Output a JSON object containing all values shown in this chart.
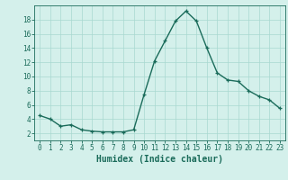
{
  "x": [
    0,
    1,
    2,
    3,
    4,
    5,
    6,
    7,
    8,
    9,
    10,
    11,
    12,
    13,
    14,
    15,
    16,
    17,
    18,
    19,
    20,
    21,
    22,
    23
  ],
  "y": [
    4.5,
    4.0,
    3.0,
    3.2,
    2.5,
    2.3,
    2.2,
    2.2,
    2.2,
    2.5,
    7.5,
    12.2,
    15.0,
    17.8,
    19.2,
    17.8,
    14.0,
    10.5,
    9.5,
    9.3,
    8.0,
    7.2,
    6.7,
    5.5
  ],
  "line_color": "#1a6b5a",
  "marker": "+",
  "markersize": 3,
  "linewidth": 1.0,
  "bg_color": "#d4f0eb",
  "grid_color": "#a8d8d0",
  "xlabel": "Humidex (Indice chaleur)",
  "xlim": [
    -0.5,
    23.5
  ],
  "ylim": [
    1.0,
    20.0
  ],
  "yticks": [
    2,
    4,
    6,
    8,
    10,
    12,
    14,
    16,
    18
  ],
  "xticks": [
    0,
    1,
    2,
    3,
    4,
    5,
    6,
    7,
    8,
    9,
    10,
    11,
    12,
    13,
    14,
    15,
    16,
    17,
    18,
    19,
    20,
    21,
    22,
    23
  ],
  "tick_fontsize": 5.5,
  "label_fontsize": 7.0
}
